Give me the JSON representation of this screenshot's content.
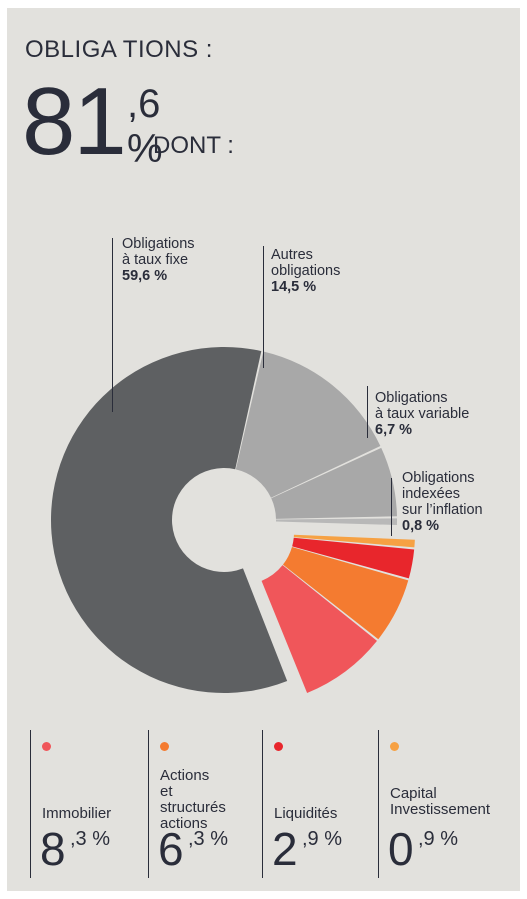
{
  "header": {
    "label": "OBLIGA TIONS  :",
    "total_int": "81",
    "total_dec": ",6 %",
    "sub": "DONT  :"
  },
  "chart_data": {
    "type": "pie",
    "title": "OBLIGA TIONS : 81,6 %",
    "categories": [
      "Obligations à taux fixe",
      "Autres obligations",
      "Obligations à taux variable",
      "Obligations indexées sur l’inflation",
      "Capital Investissement",
      "Liquidités",
      "Actions et structurés actions",
      "Immobilier"
    ],
    "values": [
      59.6,
      14.5,
      6.7,
      0.8,
      0.9,
      2.9,
      6.3,
      8.3
    ],
    "colors": [
      "#5e6062",
      "#a8a8a8",
      "#a8a8a8",
      "#b8b8b8",
      "#f6a143",
      "#e8262c",
      "#f47b30",
      "#f0565a"
    ],
    "style": "donut",
    "exploded_group": "non-bond assets"
  },
  "labels": [
    {
      "l1": "Obligations",
      "l2": "à taux fixe",
      "value": "59,6 %"
    },
    {
      "l1": "Autres",
      "l2": "obligations",
      "value": "14,5 %"
    },
    {
      "l1": "Obligations",
      "l2": "à taux variable",
      "value": "6,7 %"
    },
    {
      "l1": "Obligations",
      "l2": "indexées",
      "l3": "sur l’inflation",
      "value": "0,8 %"
    }
  ],
  "legend": [
    {
      "name1": "",
      "name2": "Immobilier",
      "int": "8",
      "dec": ",3 %",
      "color": "#f0565a"
    },
    {
      "name1": "Actions",
      "name2": "et structurés",
      "name3": "actions",
      "int": "6",
      "dec": ",3 %",
      "color": "#f47b30"
    },
    {
      "name1": "",
      "name2": "Liquidités",
      "int": "2",
      "dec": ",9 %",
      "color": "#e8262c"
    },
    {
      "name1": "Capital",
      "name2": "Investissement",
      "int": "0",
      "dec": ",9 %",
      "color": "#f6a143"
    }
  ]
}
